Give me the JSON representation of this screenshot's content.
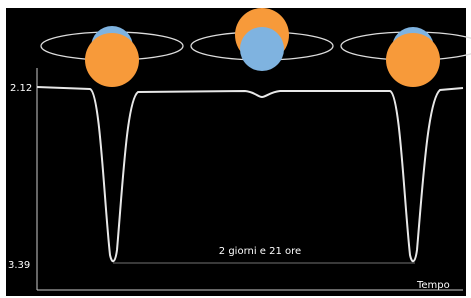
{
  "axis": {
    "top_label": "2.12",
    "bottom_label": "3.39",
    "x_label": "Tempo"
  },
  "period_label": "2 giorni e 21 ore"
}
